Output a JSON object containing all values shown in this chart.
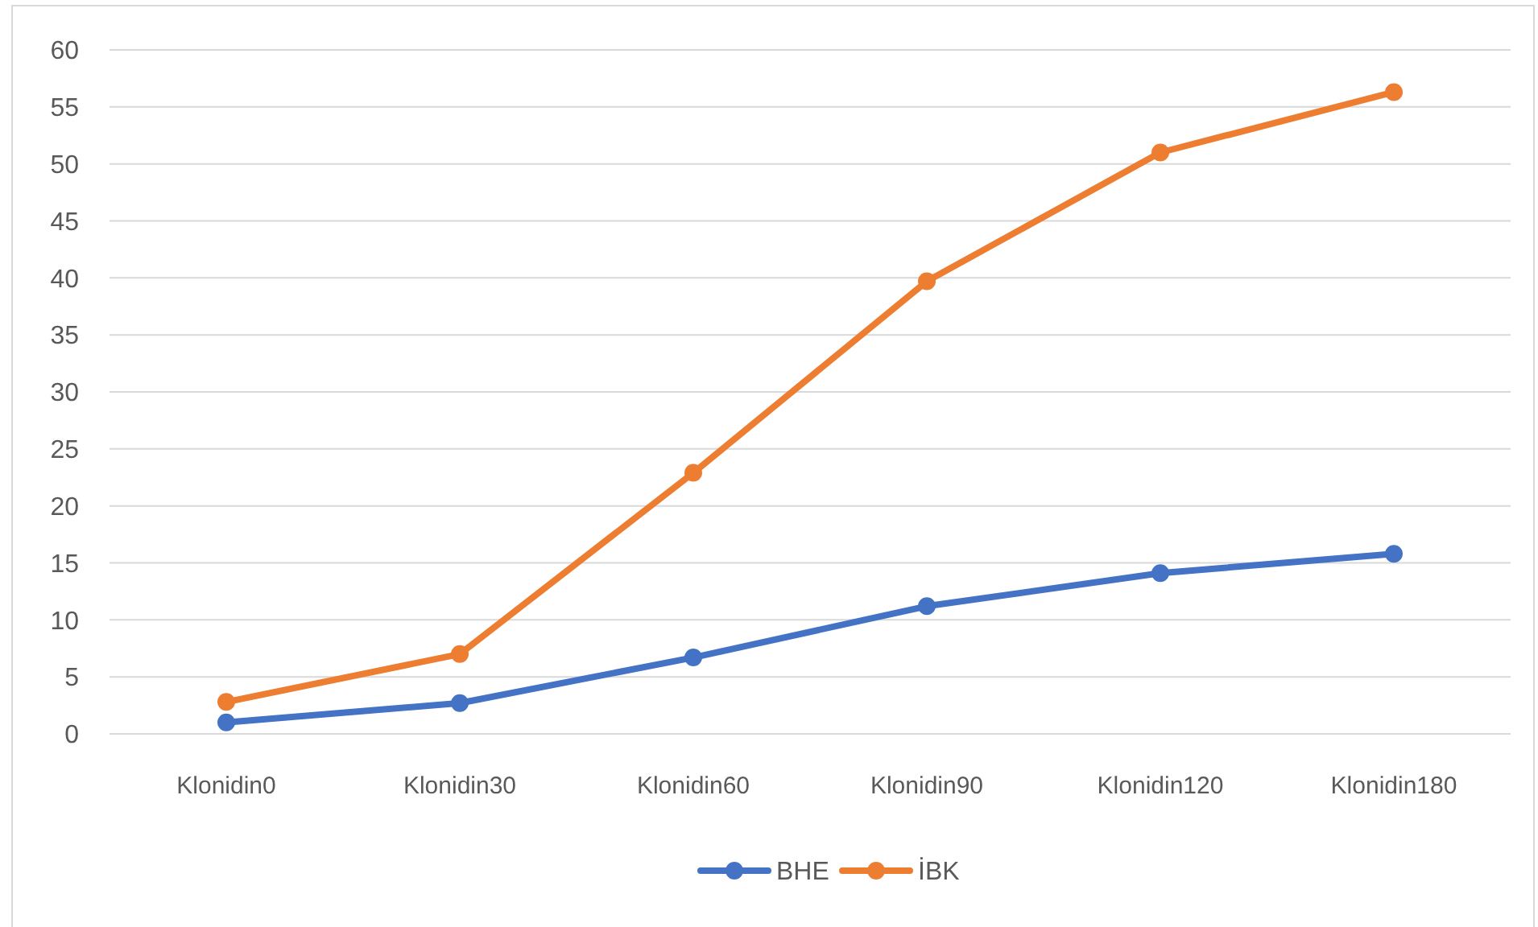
{
  "chart_data": {
    "type": "line",
    "categories": [
      "Klonidin0",
      "Klonidin30",
      "Klonidin60",
      "Klonidin90",
      "Klonidin120",
      "Klonidin180"
    ],
    "series": [
      {
        "name": "BHE",
        "color": "#4472c4",
        "values": [
          1.0,
          2.7,
          6.7,
          11.2,
          14.1,
          15.8
        ]
      },
      {
        "name": "İBK",
        "color": "#ed7d31",
        "values": [
          2.8,
          7.0,
          22.9,
          39.7,
          51.0,
          56.3
        ]
      }
    ],
    "ylim": [
      0,
      60
    ],
    "yticks": [
      0,
      5,
      10,
      15,
      20,
      25,
      30,
      35,
      40,
      45,
      50,
      55,
      60
    ],
    "grid": "y",
    "legend": "bottom",
    "marker": "circle",
    "line_style": "solid"
  }
}
